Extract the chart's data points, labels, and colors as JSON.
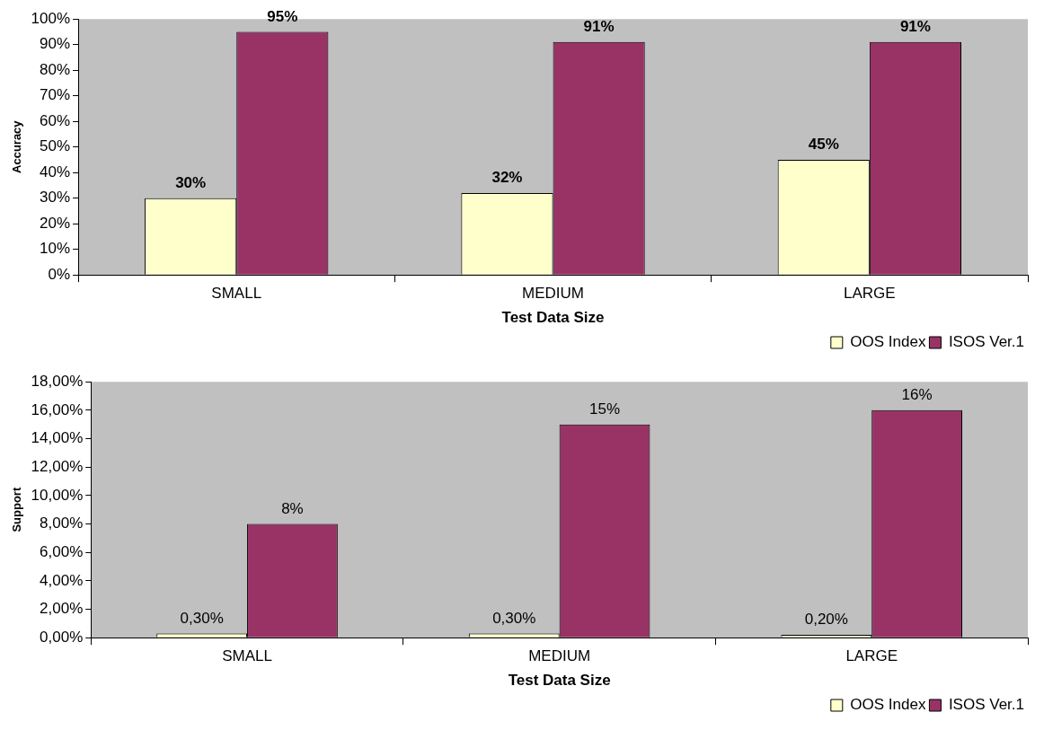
{
  "chart_data": [
    {
      "type": "bar",
      "xlabel": "Test Data Size",
      "ylabel": "Accuracy",
      "categories": [
        "SMALL",
        "MEDIUM",
        "LARGE"
      ],
      "series": [
        {
          "name": "OOS Index",
          "color": "#ffffcc",
          "values": [
            30,
            32,
            45
          ],
          "value_labels": [
            "30%",
            "32%",
            "45%"
          ]
        },
        {
          "name": "ISOS Ver.1",
          "color": "#993366",
          "values": [
            95,
            91,
            91
          ],
          "value_labels": [
            "95%",
            "91%",
            "91%"
          ]
        }
      ],
      "ylim": [
        0,
        100
      ],
      "yticks": [
        {
          "value": 0,
          "label": "0%"
        },
        {
          "value": 10,
          "label": "10%"
        },
        {
          "value": 20,
          "label": "20%"
        },
        {
          "value": 30,
          "label": "30%"
        },
        {
          "value": 40,
          "label": "40%"
        },
        {
          "value": 50,
          "label": "50%"
        },
        {
          "value": 60,
          "label": "60%"
        },
        {
          "value": 70,
          "label": "70%"
        },
        {
          "value": 80,
          "label": "80%"
        },
        {
          "value": 90,
          "label": "90%"
        },
        {
          "value": 100,
          "label": "100%"
        }
      ],
      "grid": false,
      "legend": "bottom right"
    },
    {
      "type": "bar",
      "xlabel": "Test Data Size",
      "ylabel": "Support",
      "categories": [
        "SMALL",
        "MEDIUM",
        "LARGE"
      ],
      "series": [
        {
          "name": "OOS Index",
          "color": "#ffffcc",
          "values": [
            0.3,
            0.3,
            0.2
          ],
          "value_labels": [
            "0,30%",
            "0,30%",
            "0,20%"
          ]
        },
        {
          "name": "ISOS Ver.1",
          "color": "#993366",
          "values": [
            8,
            15,
            16
          ],
          "value_labels": [
            "8%",
            "15%",
            "16%"
          ]
        }
      ],
      "ylim": [
        0,
        18
      ],
      "yticks": [
        {
          "value": 0,
          "label": "0,00%"
        },
        {
          "value": 2,
          "label": "2,00%"
        },
        {
          "value": 4,
          "label": "4,00%"
        },
        {
          "value": 6,
          "label": "6,00%"
        },
        {
          "value": 8,
          "label": "8,00%"
        },
        {
          "value": 10,
          "label": "10,00%"
        },
        {
          "value": 12,
          "label": "12,00%"
        },
        {
          "value": 14,
          "label": "14,00%"
        },
        {
          "value": 16,
          "label": "16,00%"
        },
        {
          "value": 18,
          "label": "18,00%"
        }
      ],
      "grid": false,
      "legend": "bottom right"
    }
  ]
}
